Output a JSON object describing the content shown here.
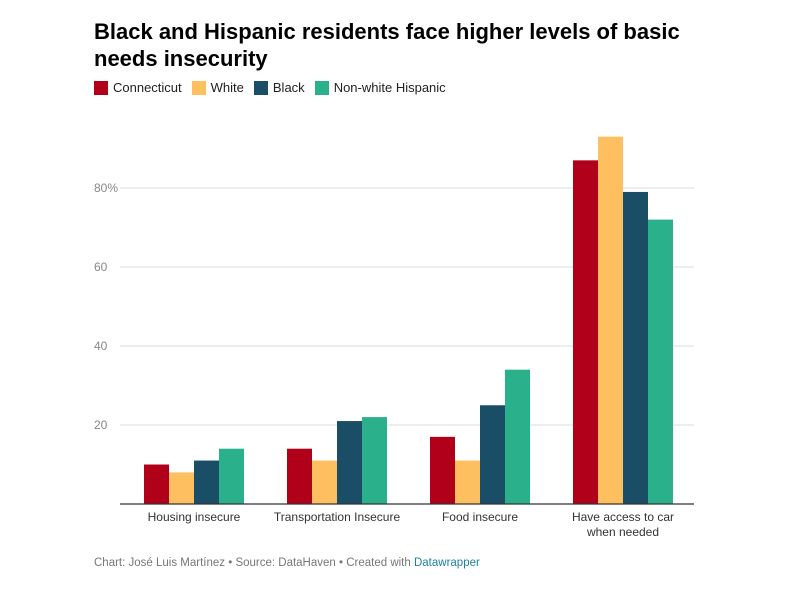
{
  "chart_data": {
    "type": "bar",
    "title": "Black and Hispanic residents face higher levels of basic needs insecurity",
    "categories": [
      "Housing insecure",
      "Transportation Insecure",
      "Food insecure",
      "Have access to car when needed"
    ],
    "series": [
      {
        "name": "Connecticut",
        "color": "#b0001a",
        "values": [
          10,
          14,
          17,
          87
        ]
      },
      {
        "name": "White",
        "color": "#fdbf5f",
        "values": [
          8,
          11,
          11,
          93
        ]
      },
      {
        "name": "Black",
        "color": "#1a4d66",
        "values": [
          11,
          21,
          25,
          79
        ]
      },
      {
        "name": "Non-white Hispanic",
        "color": "#2bb08c",
        "values": [
          14,
          22,
          34,
          72
        ]
      }
    ],
    "ylim": [
      0,
      100
    ],
    "yticks": [
      20,
      40,
      60,
      80
    ],
    "ytick_labels": [
      "20",
      "40",
      "60",
      "80%"
    ],
    "grid": true,
    "legend": "top-left"
  },
  "footer": {
    "credit": "Chart: José Luis Martínez • Source: DataHaven • Created with ",
    "link": "Datawrapper"
  }
}
